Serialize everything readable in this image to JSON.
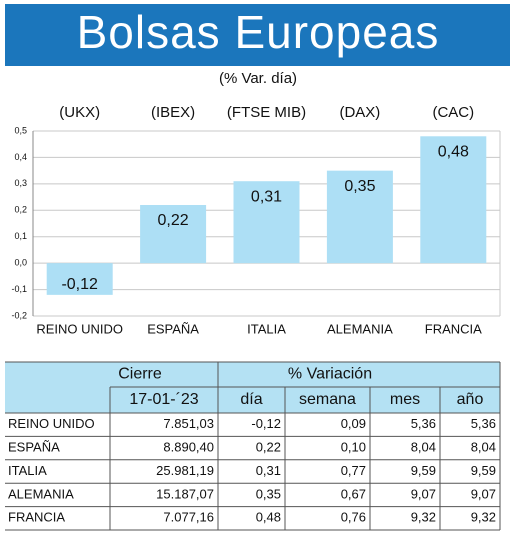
{
  "chart_data": {
    "type": "bar",
    "title": "Bolsas Europeas",
    "subtitle": "(% Var. día)",
    "index_labels": [
      "(UKX)",
      "(IBEX)",
      "(FTSE MIB)",
      "(DAX)",
      "(CAC)"
    ],
    "categories": [
      "REINO UNIDO",
      "ESPAÑA",
      "ITALIA",
      "ALEMANIA",
      "FRANCIA"
    ],
    "values": [
      -0.12,
      0.22,
      0.31,
      0.35,
      0.48
    ],
    "value_labels": [
      "-0,12",
      "0,22",
      "0,31",
      "0,35",
      "0,48"
    ],
    "color": "#addff5",
    "ylim": [
      -0.2,
      0.5
    ],
    "yticks": [
      {
        "value": 0.5,
        "label": "0,5"
      },
      {
        "value": 0.4,
        "label": "0,4"
      },
      {
        "value": 0.3,
        "label": "0,3"
      },
      {
        "value": 0.2,
        "label": "0,2"
      },
      {
        "value": 0.1,
        "label": "0,1"
      },
      {
        "value": 0,
        "label": "0,0"
      },
      {
        "value": -0.1,
        "label": "-0,1"
      },
      {
        "value": -0.2,
        "label": "-0,2"
      }
    ],
    "grid": true
  },
  "table": {
    "header_top": [
      "Cierre",
      "% Variación"
    ],
    "header": [
      "17-01-´23",
      "día",
      "semana",
      "mes",
      "año"
    ],
    "rows": [
      [
        "REINO UNIDO",
        "7.851,03",
        "-0,12",
        "0,09",
        "5,36",
        "5,36"
      ],
      [
        "ESPAÑA",
        "8.890,40",
        "0,22",
        "0,10",
        "8,04",
        "8,04"
      ],
      [
        "ITALIA",
        "25.981,19",
        "0,31",
        "0,77",
        "9,59",
        "9,59"
      ],
      [
        "ALEMANIA",
        "15.187,07",
        "0,35",
        "0,67",
        "9,07",
        "9,07"
      ],
      [
        "FRANCIA",
        "7.077,16",
        "0,48",
        "0,76",
        "9,32",
        "9,32"
      ]
    ]
  }
}
